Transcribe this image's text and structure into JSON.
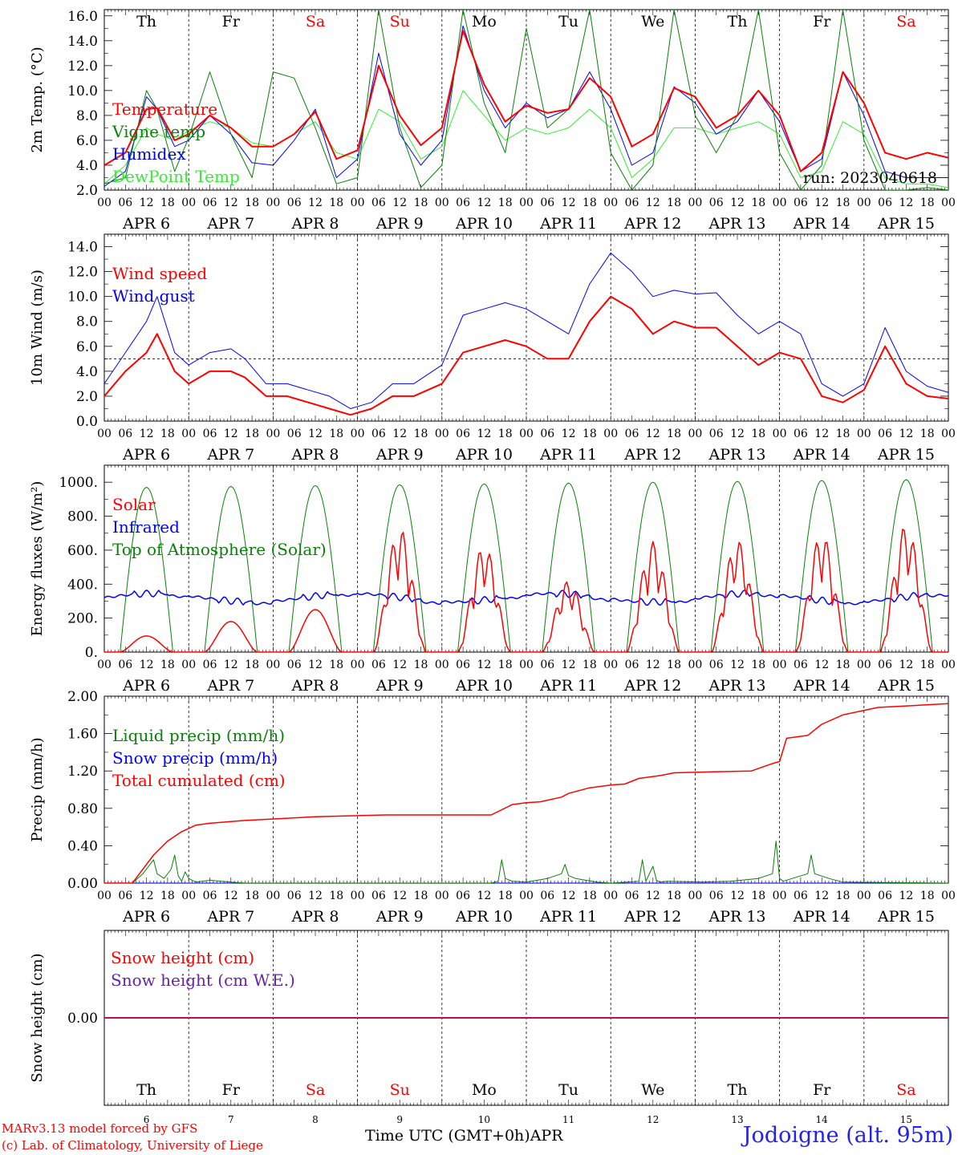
{
  "chart_data": [
    {
      "type": "line",
      "id": "temp",
      "ylabel": "2m Temp. (°C)",
      "ylim": [
        2,
        16.5
      ],
      "yticks": [
        "2.0",
        "4.0",
        "6.0",
        "8.0",
        "10.0",
        "12.0",
        "14.0",
        "16.0"
      ],
      "annotation": "run: 2023040618",
      "legend": [
        "Temperature",
        "Vigne temp",
        "Humidex",
        "DewPoint Temp"
      ],
      "series": [
        {
          "name": "Temperature",
          "color": "#ff0000",
          "width": 2,
          "x": [
            0,
            6,
            12,
            15,
            20,
            24,
            30,
            36,
            42,
            48,
            54,
            60,
            66,
            72,
            78,
            84,
            90,
            96,
            102,
            108,
            114,
            120,
            126,
            132,
            138,
            144,
            150,
            156,
            162,
            168,
            174,
            180,
            186,
            192,
            198,
            204,
            210,
            216,
            222,
            228,
            234,
            240
          ],
          "y": [
            4.0,
            5.0,
            8.5,
            8.6,
            6.0,
            6.5,
            8.0,
            7.0,
            5.5,
            5.5,
            6.5,
            8.3,
            4.5,
            5.2,
            12.0,
            8.0,
            5.6,
            7.0,
            14.8,
            10.5,
            7.5,
            8.8,
            8.2,
            8.5,
            11.0,
            9.5,
            5.5,
            6.5,
            10.2,
            9.5,
            7.0,
            8.0,
            10.0,
            8.0,
            3.5,
            5.0,
            11.5,
            9.0,
            5.0,
            4.5,
            5.0,
            4.6
          ]
        },
        {
          "name": "Vigne temp",
          "color": "#0a7f0a",
          "width": 1,
          "x": [
            0,
            6,
            12,
            15,
            20,
            24,
            30,
            36,
            42,
            48,
            54,
            60,
            66,
            72,
            78,
            84,
            90,
            96,
            102,
            108,
            114,
            120,
            126,
            132,
            138,
            144,
            150,
            156,
            162,
            168,
            174,
            180,
            186,
            192,
            198,
            204,
            210,
            216,
            222,
            228,
            234,
            240
          ],
          "y": [
            2.5,
            3.0,
            10.0,
            8.5,
            3.5,
            6.2,
            11.5,
            6.5,
            3.0,
            11.5,
            11.0,
            7.0,
            2.5,
            3.0,
            16.5,
            7.0,
            2.2,
            4.0,
            16.5,
            9.0,
            5.0,
            15.0,
            7.0,
            8.5,
            16.5,
            5.0,
            2.0,
            4.0,
            16.5,
            8.0,
            5.0,
            8.0,
            16.5,
            5.0,
            2.0,
            4.0,
            16.5,
            6.0,
            2.0,
            2.0,
            2.2,
            2.0
          ]
        },
        {
          "name": "Humidex",
          "color": "#0000ff",
          "width": 1,
          "x": [
            0,
            6,
            12,
            15,
            20,
            24,
            30,
            36,
            42,
            48,
            54,
            60,
            66,
            72,
            78,
            84,
            90,
            96,
            102,
            108,
            114,
            120,
            126,
            132,
            138,
            144,
            150,
            156,
            162,
            168,
            174,
            180,
            186,
            192,
            198,
            204,
            210,
            216,
            222,
            228,
            234,
            240
          ],
          "y": [
            2.3,
            3.5,
            9.5,
            8.5,
            5.5,
            6.0,
            8.0,
            6.5,
            4.2,
            4.0,
            6.0,
            8.5,
            3.0,
            4.5,
            13.0,
            6.5,
            4.0,
            6.0,
            15.2,
            10.0,
            7.0,
            9.0,
            7.8,
            8.5,
            11.5,
            8.5,
            4.0,
            5.0,
            10.3,
            9.0,
            6.5,
            7.5,
            10.0,
            7.5,
            3.5,
            4.5,
            11.5,
            8.0,
            3.5,
            3.0,
            3.0,
            3.0
          ]
        },
        {
          "name": "DewPoint Temp",
          "color": "#33ee33",
          "width": 1,
          "x": [
            0,
            6,
            12,
            15,
            20,
            24,
            30,
            36,
            42,
            48,
            54,
            60,
            66,
            72,
            78,
            84,
            90,
            96,
            102,
            108,
            114,
            120,
            126,
            132,
            138,
            144,
            150,
            156,
            162,
            168,
            174,
            180,
            186,
            192,
            198,
            204,
            210,
            216,
            222,
            228,
            234,
            240
          ],
          "y": [
            2.5,
            4.0,
            7.0,
            6.5,
            6.0,
            6.8,
            7.5,
            7.0,
            5.8,
            5.5,
            6.5,
            7.5,
            5.0,
            4.5,
            8.5,
            7.5,
            4.5,
            5.5,
            10.0,
            8.0,
            6.0,
            7.0,
            6.5,
            7.0,
            8.5,
            7.0,
            3.0,
            4.5,
            7.0,
            7.0,
            6.5,
            7.0,
            7.5,
            6.5,
            3.0,
            3.5,
            7.5,
            6.5,
            3.0,
            2.5,
            2.5,
            2.2
          ]
        }
      ]
    },
    {
      "type": "line",
      "id": "wind",
      "ylabel": "10m Wind (m/s)",
      "ylim": [
        0,
        15
      ],
      "yticks": [
        "0.0",
        "2.0",
        "4.0",
        "6.0",
        "8.0",
        "10.0",
        "12.0",
        "14.0"
      ],
      "hline": 5,
      "legend": [
        "Wind speed",
        "Wind gust"
      ],
      "series": [
        {
          "name": "Wind speed",
          "color": "#ff0000",
          "width": 2,
          "x": [
            0,
            6,
            12,
            15,
            20,
            24,
            30,
            36,
            40,
            46,
            52,
            58,
            64,
            70,
            76,
            82,
            88,
            96,
            102,
            108,
            114,
            120,
            126,
            132,
            138,
            144,
            150,
            156,
            162,
            168,
            174,
            180,
            186,
            192,
            198,
            204,
            210,
            216,
            222,
            228,
            234,
            240
          ],
          "y": [
            2.0,
            4.0,
            5.5,
            7.0,
            4.0,
            3.0,
            4.0,
            4.0,
            3.5,
            2.0,
            2.0,
            1.5,
            1.0,
            0.5,
            1.0,
            2.0,
            2.0,
            3.0,
            5.5,
            6.0,
            6.5,
            6.0,
            5.0,
            5.0,
            8.0,
            10.0,
            9.0,
            7.0,
            8.0,
            7.5,
            7.5,
            6.0,
            4.5,
            5.5,
            5.0,
            2.0,
            1.5,
            2.5,
            6.0,
            3.0,
            2.0,
            1.8
          ]
        },
        {
          "name": "Wind gust",
          "color": "#0000ff",
          "width": 1,
          "x": [
            0,
            6,
            12,
            15,
            20,
            24,
            30,
            36,
            40,
            46,
            52,
            58,
            64,
            70,
            76,
            82,
            88,
            96,
            102,
            108,
            114,
            120,
            126,
            132,
            138,
            144,
            150,
            156,
            162,
            168,
            174,
            180,
            186,
            192,
            198,
            204,
            210,
            216,
            222,
            228,
            234,
            240
          ],
          "y": [
            3.0,
            5.5,
            8.0,
            10.0,
            5.5,
            4.5,
            5.5,
            5.8,
            5.0,
            3.0,
            3.0,
            2.5,
            2.0,
            1.0,
            1.5,
            3.0,
            3.0,
            4.5,
            8.5,
            9.0,
            9.5,
            9.0,
            8.0,
            7.0,
            11.0,
            13.5,
            12.0,
            10.0,
            10.5,
            10.2,
            10.3,
            8.5,
            7.0,
            8.0,
            7.0,
            3.0,
            2.0,
            3.0,
            7.5,
            4.0,
            2.8,
            2.3
          ]
        }
      ]
    },
    {
      "type": "line",
      "id": "energy",
      "ylabel": "Energy fluxes (W/m²)",
      "ylim": [
        0,
        1100
      ],
      "yticks": [
        "0.",
        "200.",
        "400.",
        "600.",
        "800.",
        "1000."
      ],
      "legend": [
        "Solar",
        "Infrared",
        "Top of Atmosphere (Solar)"
      ],
      "solar_peaks": [
        95,
        180,
        250,
        730,
        630,
        420,
        650,
        660,
        700,
        750
      ],
      "toa_peaks": [
        970,
        975,
        980,
        985,
        990,
        995,
        1000,
        1005,
        1010,
        1015
      ],
      "infrared_level": 320,
      "series": [
        {
          "name": "Solar",
          "color": "#ff0000",
          "width": 1.5
        },
        {
          "name": "Infrared",
          "color": "#0000ff",
          "width": 1.5
        },
        {
          "name": "Top of Atmosphere (Solar)",
          "color": "#0a7f0a",
          "width": 1
        }
      ]
    },
    {
      "type": "line",
      "id": "precip",
      "ylabel": "Precip (mm/h)",
      "ylim": [
        0,
        2.0
      ],
      "yticks": [
        "0.00",
        "0.40",
        "0.80",
        "1.20",
        "1.60",
        "2.00"
      ],
      "legend": [
        "Liquid precip (mm/h)",
        "Snow precip (mm/h)",
        "Total cumulated (cm)"
      ],
      "series": [
        {
          "name": "Total cumulated (cm)",
          "color": "#ff0000",
          "width": 1.5,
          "x": [
            0,
            8,
            10,
            14,
            18,
            22,
            26,
            30,
            40,
            50,
            60,
            70,
            80,
            96,
            110,
            116,
            120,
            124,
            130,
            132,
            138,
            144,
            148,
            152,
            158,
            162,
            172,
            184,
            190,
            192,
            194,
            200,
            204,
            210,
            220,
            240
          ],
          "y": [
            0,
            0,
            0.1,
            0.3,
            0.45,
            0.55,
            0.62,
            0.64,
            0.67,
            0.69,
            0.71,
            0.72,
            0.73,
            0.73,
            0.73,
            0.84,
            0.86,
            0.87,
            0.92,
            0.96,
            1.02,
            1.05,
            1.06,
            1.12,
            1.15,
            1.18,
            1.19,
            1.2,
            1.28,
            1.3,
            1.55,
            1.58,
            1.7,
            1.8,
            1.88,
            1.92
          ]
        },
        {
          "name": "Liquid precip (mm/h)",
          "color": "#0a7f0a",
          "width": 1,
          "x": [
            0,
            8,
            11,
            13,
            14,
            15,
            17,
            19,
            20,
            21,
            22,
            23,
            24,
            26,
            30,
            36,
            40,
            110,
            112,
            113,
            114,
            116,
            120,
            126,
            130,
            131,
            132,
            134,
            140,
            144,
            152,
            153,
            154,
            156,
            157,
            158,
            160,
            170,
            178,
            186,
            190,
            191,
            192,
            193,
            200,
            201,
            202,
            206,
            210,
            240
          ],
          "y": [
            0,
            0,
            0.1,
            0.2,
            0.25,
            0.1,
            0.05,
            0.15,
            0.3,
            0.08,
            0.02,
            0.12,
            0.05,
            0.01,
            0.03,
            0.01,
            0,
            0,
            0.02,
            0.25,
            0.05,
            0.02,
            0.01,
            0.05,
            0.1,
            0.2,
            0.08,
            0.05,
            0.01,
            0,
            0.02,
            0.25,
            0.02,
            0.18,
            0.03,
            0.01,
            0.02,
            0.01,
            0.02,
            0.05,
            0.1,
            0.45,
            0.05,
            0.02,
            0.1,
            0.3,
            0.1,
            0.05,
            0.01,
            0
          ]
        },
        {
          "name": "Snow precip (mm/h)",
          "color": "#0000ff",
          "width": 1,
          "x": [
            0,
            240
          ],
          "y": [
            0,
            0
          ]
        }
      ]
    },
    {
      "type": "line",
      "id": "snow",
      "ylabel": "Snow height (cm)",
      "ylim": [
        -1,
        1
      ],
      "yticks": [
        "0.00"
      ],
      "legend": [
        "Snow height (cm)",
        "Snow height (cm W.E.)"
      ],
      "series": [
        {
          "name": "Snow height (cm)",
          "color": "#ff0000",
          "width": 1,
          "x": [
            0,
            240
          ],
          "y": [
            0,
            0
          ]
        },
        {
          "name": "Snow height (cm W.E.)",
          "color": "#6622aa",
          "width": 2,
          "x": [
            0,
            240
          ],
          "y": [
            0,
            0
          ]
        }
      ]
    }
  ],
  "axis": {
    "days": [
      "Th",
      "Fr",
      "Sa",
      "Su",
      "Mo",
      "Tu",
      "We",
      "Th",
      "Fr",
      "Sa"
    ],
    "day_colors": [
      "#000000",
      "#000000",
      "#ff0000",
      "#ff0000",
      "#000000",
      "#000000",
      "#000000",
      "#000000",
      "#000000",
      "#ff0000"
    ],
    "dates": [
      "APR  6",
      "APR  7",
      "APR  8",
      "APR  9",
      "APR 10",
      "APR 11",
      "APR 12",
      "APR 13",
      "APR 14",
      "APR 15"
    ],
    "hour_labels": [
      "00",
      "06",
      "12",
      "18"
    ],
    "bottom_day_numbers": [
      "6",
      "7",
      "8",
      "9",
      "10",
      "11",
      "12",
      "13",
      "14",
      "15"
    ],
    "bottom_month": "APR",
    "xlabel": "Time UTC (GMT+0h)",
    "legend_colors": {
      "red": "#ff0000",
      "green": "#0a7f0a",
      "blue": "#0000ff",
      "light_green": "#33ee33"
    }
  },
  "footer": {
    "credit1": "MARv3.13 model forced by GFS",
    "credit2": "(c) Lab. of Climatology, University of Liege",
    "station": "Jodoigne (alt. 95m)"
  }
}
